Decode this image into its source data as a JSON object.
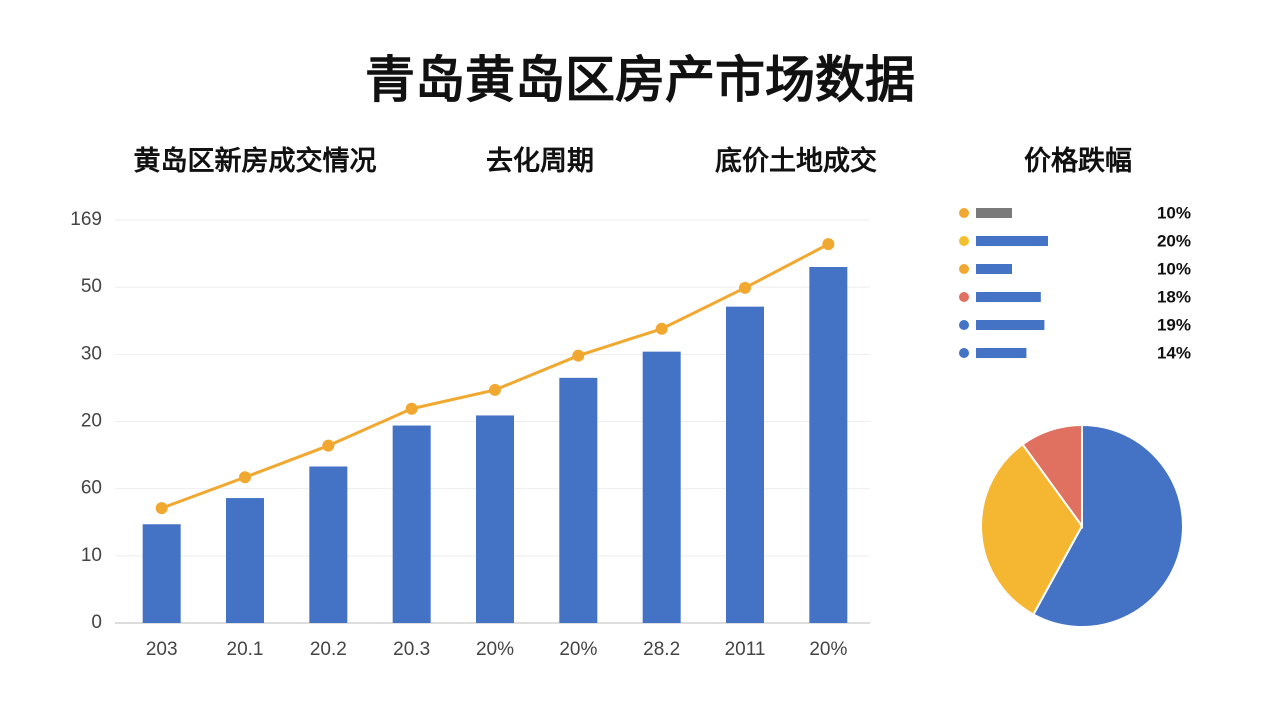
{
  "header": {
    "title": "青岛黄岛区房产市场数据",
    "subtitles": [
      "黄岛区新房成交情况",
      "去化周期",
      "底价土地成交",
      "价格跌幅"
    ]
  },
  "chart_data": [
    {
      "type": "bar",
      "categories": [
        "203",
        "20.1",
        "20.2",
        "20.3",
        "20%",
        "20%",
        "28.2",
        "2011",
        "20%"
      ],
      "series": [
        {
          "type": "bar",
          "color": "#4472c4",
          "values": [
            14.7,
            18.6,
            23.3,
            29.4,
            30.9,
            36.5,
            40.4,
            47.1,
            53.0
          ]
        },
        {
          "type": "line",
          "color": "#f0a830",
          "values": [
            17.1,
            21.7,
            26.4,
            31.9,
            34.7,
            39.8,
            43.8,
            49.9,
            56.4
          ]
        }
      ],
      "ylim": [
        0,
        60
      ],
      "yticks": [
        0,
        10,
        {
          "value": 20,
          "label": "60"
        },
        {
          "value": 30,
          "label": "20"
        },
        {
          "value": 40,
          "label": "30"
        },
        50,
        {
          "value": 60,
          "label": "169"
        }
      ],
      "grid": true
    },
    {
      "type": "hbar",
      "values": [
        10,
        20,
        10,
        18,
        19,
        14
      ],
      "value_labels": [
        "10%",
        "20%",
        "10%",
        "18%",
        "19%",
        "14%"
      ],
      "colors": [
        "#7a7a7a",
        "#4472c4",
        "#4472c4",
        "#4472c4",
        "#4472c4",
        "#4472c4"
      ],
      "dot_colors": [
        "#f0a830",
        "#f5c030",
        "#f0a830",
        "#e07060",
        "#4472c4",
        "#4472c4"
      ]
    },
    {
      "type": "pie",
      "values": [
        58,
        32,
        10
      ],
      "colors": [
        "#4472c4",
        "#f5b731",
        "#e07060"
      ]
    }
  ]
}
